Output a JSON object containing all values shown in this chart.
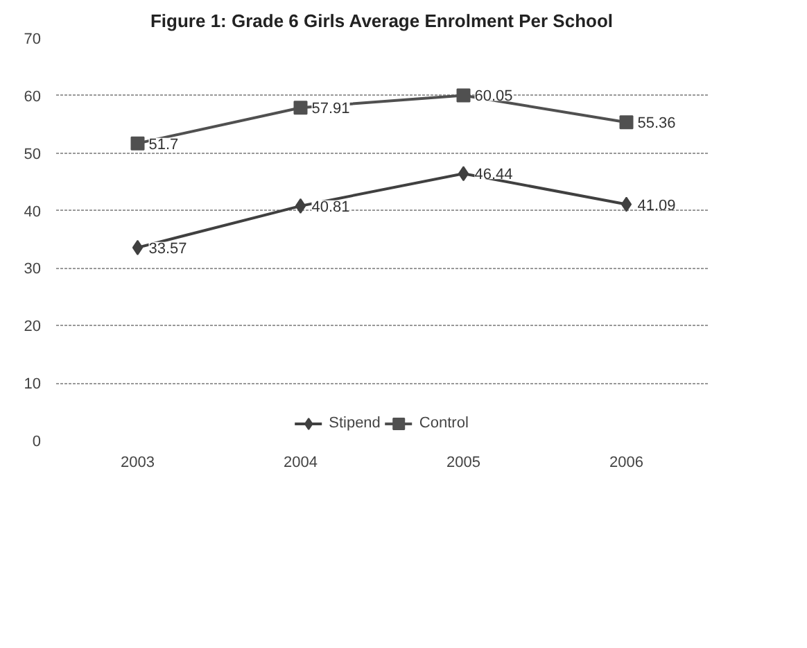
{
  "chart_data": {
    "type": "line",
    "title": "Figure 1: Grade 6 Girls Average Enrolment Per School",
    "categories": [
      "2003",
      "2004",
      "2005",
      "2006"
    ],
    "series": [
      {
        "name": "Stipend",
        "color": "#404040",
        "marker": "diamond",
        "values": [
          33.57,
          40.81,
          46.44,
          41.09
        ]
      },
      {
        "name": "Control",
        "color": "#505050",
        "marker": "square",
        "values": [
          51.7,
          57.91,
          60.05,
          55.36
        ]
      }
    ],
    "ylim": [
      0,
      70
    ],
    "yticks": [
      0,
      10,
      20,
      30,
      40,
      50,
      60,
      70
    ],
    "grid": "y",
    "legend": "bottom",
    "data_labels": true
  }
}
